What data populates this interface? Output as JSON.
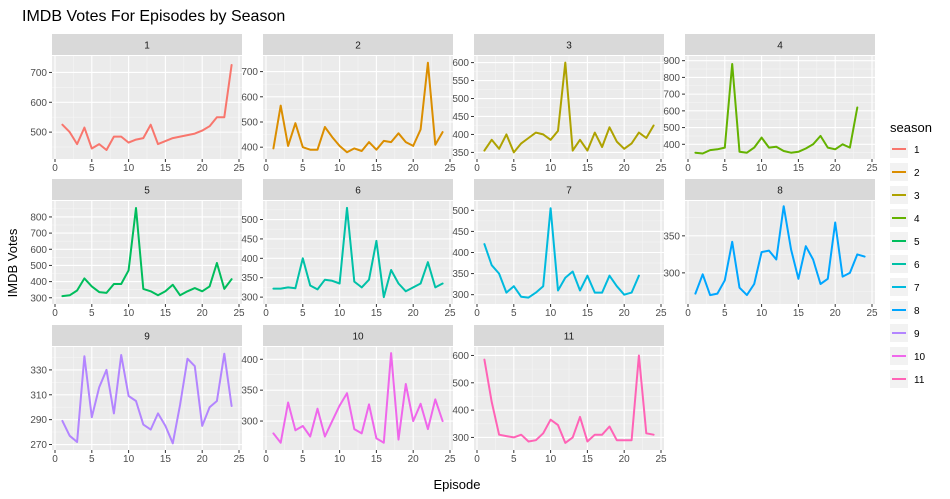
{
  "chart_data": {
    "type": "line",
    "title": "IMDB Votes For Episodes by Season",
    "xlabel": "Episode",
    "ylabel": "IMDB Votes",
    "legend": {
      "title": "season",
      "placement": "right"
    },
    "grid": true,
    "panels": [
      {
        "season": "1",
        "color": "#F8766D",
        "xlim": [
          0,
          25
        ],
        "ylim": [
          420,
          745
        ],
        "yticks": [
          500,
          600,
          700
        ],
        "x": [
          1,
          2,
          3,
          4,
          5,
          6,
          7,
          8,
          9,
          10,
          11,
          12,
          13,
          14,
          15,
          16,
          17,
          18,
          19,
          20,
          21,
          22,
          23,
          24
        ],
        "y": [
          525,
          500,
          460,
          515,
          445,
          460,
          440,
          485,
          485,
          465,
          475,
          480,
          525,
          460,
          470,
          480,
          485,
          490,
          495,
          505,
          520,
          550,
          550,
          725
        ]
      },
      {
        "season": "2",
        "color": "#DB8E00",
        "xlim": [
          0,
          25
        ],
        "ylim": [
          365,
          750
        ],
        "yticks": [
          400,
          500,
          600,
          700
        ],
        "x": [
          1,
          2,
          3,
          4,
          5,
          6,
          7,
          8,
          9,
          10,
          11,
          12,
          13,
          14,
          15,
          16,
          17,
          18,
          19,
          20,
          21,
          22,
          23,
          24
        ],
        "y": [
          395,
          565,
          405,
          495,
          400,
          390,
          390,
          480,
          440,
          405,
          380,
          395,
          385,
          420,
          390,
          425,
          420,
          455,
          420,
          405,
          470,
          735,
          410,
          460
        ]
      },
      {
        "season": "3",
        "color": "#AEA200",
        "xlim": [
          0,
          25
        ],
        "ylim": [
          340,
          610
        ],
        "yticks": [
          350,
          400,
          450,
          500,
          550,
          600
        ],
        "x": [
          1,
          2,
          3,
          4,
          5,
          6,
          7,
          8,
          9,
          10,
          11,
          12,
          13,
          14,
          15,
          16,
          17,
          18,
          19,
          20,
          21,
          22,
          23,
          24
        ],
        "y": [
          355,
          385,
          360,
          400,
          350,
          375,
          390,
          405,
          400,
          385,
          410,
          600,
          355,
          385,
          355,
          405,
          365,
          420,
          380,
          360,
          375,
          405,
          390,
          425
        ]
      },
      {
        "season": "4",
        "color": "#64B200",
        "xlim": [
          0,
          25
        ],
        "ylim": [
          330,
          910
        ],
        "yticks": [
          400,
          500,
          600,
          700,
          800,
          900
        ],
        "x": [
          1,
          2,
          3,
          4,
          5,
          6,
          7,
          8,
          9,
          10,
          11,
          12,
          13,
          14,
          15,
          16,
          17,
          18,
          19,
          20,
          21,
          22,
          23
        ],
        "y": [
          350,
          345,
          365,
          370,
          380,
          880,
          355,
          350,
          380,
          440,
          380,
          385,
          360,
          350,
          355,
          375,
          400,
          450,
          380,
          370,
          400,
          380,
          620
        ]
      },
      {
        "season": "5",
        "color": "#00BD5C",
        "xlim": [
          0,
          25
        ],
        "ylim": [
          280,
          880
        ],
        "yticks": [
          300,
          400,
          500,
          600,
          700,
          800
        ],
        "x": [
          1,
          2,
          3,
          4,
          5,
          6,
          7,
          8,
          9,
          10,
          11,
          12,
          13,
          14,
          15,
          16,
          17,
          18,
          19,
          20,
          21,
          22,
          23,
          24
        ],
        "y": [
          310,
          315,
          345,
          420,
          370,
          335,
          330,
          385,
          385,
          470,
          855,
          355,
          340,
          315,
          340,
          380,
          315,
          340,
          360,
          340,
          370,
          515,
          355,
          415
        ]
      },
      {
        "season": "6",
        "color": "#00C1A7",
        "xlim": [
          0,
          25
        ],
        "ylim": [
          290,
          540
        ],
        "yticks": [
          300,
          350,
          400,
          450,
          500
        ],
        "x": [
          1,
          2,
          3,
          4,
          5,
          6,
          7,
          8,
          9,
          10,
          11,
          12,
          13,
          14,
          15,
          16,
          17,
          18,
          19,
          20,
          21,
          22,
          23,
          24
        ],
        "y": [
          322,
          322,
          325,
          323,
          400,
          330,
          320,
          345,
          342,
          335,
          530,
          340,
          325,
          345,
          445,
          300,
          370,
          335,
          315,
          325,
          335,
          390,
          325,
          335
        ]
      },
      {
        "season": "7",
        "color": "#00BADE",
        "xlim": [
          0,
          25
        ],
        "ylim": [
          285,
          515
        ],
        "yticks": [
          300,
          350,
          400,
          450,
          500
        ],
        "x": [
          1,
          2,
          3,
          4,
          5,
          6,
          7,
          8,
          9,
          10,
          11,
          12,
          13,
          14,
          15,
          16,
          17,
          18,
          19,
          20,
          21,
          22
        ],
        "y": [
          420,
          370,
          350,
          305,
          320,
          295,
          293,
          305,
          320,
          505,
          310,
          340,
          355,
          310,
          345,
          305,
          305,
          345,
          320,
          300,
          305,
          345
        ]
      },
      {
        "season": "8",
        "color": "#00A6FF",
        "xlim": [
          0,
          25
        ],
        "ylim": [
          262,
          393
        ],
        "yticks": [
          300,
          350
        ],
        "x": [
          1,
          2,
          3,
          4,
          5,
          6,
          7,
          8,
          9,
          10,
          11,
          12,
          13,
          14,
          15,
          16,
          17,
          18,
          19,
          20,
          21,
          22,
          23,
          24
        ],
        "y": [
          272,
          298,
          270,
          272,
          290,
          342,
          280,
          270,
          285,
          328,
          330,
          318,
          390,
          332,
          292,
          336,
          318,
          285,
          292,
          368,
          295,
          300,
          325,
          322
        ]
      },
      {
        "season": "9",
        "color": "#B385FF",
        "xlim": [
          0,
          25
        ],
        "ylim": [
          268,
          346
        ],
        "yticks": [
          270,
          290,
          310,
          330
        ],
        "x": [
          1,
          2,
          3,
          4,
          5,
          6,
          7,
          8,
          9,
          10,
          11,
          12,
          13,
          14,
          15,
          16,
          17,
          18,
          19,
          20,
          21,
          22,
          23,
          24
        ],
        "y": [
          289,
          277,
          272,
          341,
          292,
          316,
          330,
          295,
          342,
          309,
          305,
          286,
          282,
          295,
          285,
          271,
          302,
          339,
          333,
          285,
          300,
          305,
          343,
          301
        ]
      },
      {
        "season": "10",
        "color": "#EF67EB",
        "xlim": [
          0,
          25
        ],
        "ylim": [
          258,
          415
        ],
        "yticks": [
          300,
          350,
          400
        ],
        "x": [
          1,
          2,
          3,
          4,
          5,
          6,
          7,
          8,
          9,
          10,
          11,
          12,
          13,
          14,
          15,
          16,
          17,
          18,
          19,
          20,
          21,
          22,
          23,
          24
        ],
        "y": [
          280,
          265,
          330,
          285,
          292,
          275,
          320,
          275,
          300,
          325,
          345,
          287,
          280,
          327,
          272,
          265,
          410,
          270,
          360,
          300,
          328,
          287,
          335,
          300
        ]
      },
      {
        "season": "11",
        "color": "#FF63B6",
        "xlim": [
          0,
          25
        ],
        "ylim": [
          265,
          620
        ],
        "yticks": [
          300,
          400,
          500,
          600
        ],
        "x": [
          1,
          2,
          3,
          4,
          5,
          6,
          7,
          8,
          9,
          10,
          11,
          12,
          13,
          14,
          15,
          16,
          17,
          18,
          19,
          20,
          21,
          22,
          23,
          24
        ],
        "y": [
          585,
          430,
          310,
          305,
          300,
          310,
          285,
          290,
          315,
          365,
          345,
          280,
          300,
          375,
          285,
          310,
          310,
          340,
          290,
          290,
          290,
          600,
          315,
          310
        ]
      }
    ],
    "xticks": [
      0,
      5,
      10,
      15,
      20,
      25
    ]
  }
}
